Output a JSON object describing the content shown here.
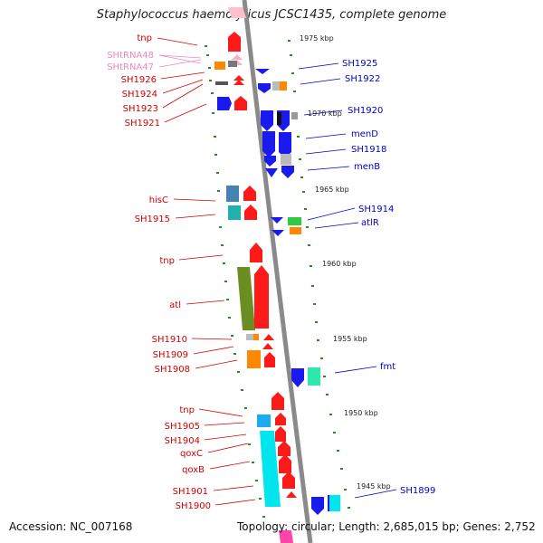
{
  "title": "Staphylococcus haemolyticus JCSC1435, complete genome",
  "footer": {
    "accession": "Accession: NC_007168",
    "topology": "Topology: circular; Length: 2,685,015 bp; Genes: 2,752"
  },
  "colors": {
    "forward_label": "#d40000",
    "reverse_label": "#0000c8",
    "trna_label": "#ee88bb",
    "backbone": "#888888",
    "tick": "#2a8a2a"
  },
  "ticks": [
    "1975 kbp",
    "1970 kbp",
    "1965 kbp",
    "1960 kbp",
    "1955 kbp",
    "1950 kbp",
    "1945 kbp"
  ],
  "left_labels": [
    "tnp",
    "SHtRNA48",
    "SHtRNA47",
    "SH1926",
    "SH1924",
    "SH1923",
    "SH1921",
    "hisC",
    "SH1915",
    "tnp",
    "atl",
    "SH1910",
    "SH1909",
    "SH1908",
    "tnp",
    "SH1905",
    "SH1904",
    "qoxC",
    "qoxB",
    "SH1901",
    "SH1900"
  ],
  "right_labels": [
    "SH1925",
    "SH1922",
    "SH1920",
    "menD",
    "SH1918",
    "menB",
    "SH1914",
    "atlR",
    "fmt",
    "SH1899"
  ]
}
